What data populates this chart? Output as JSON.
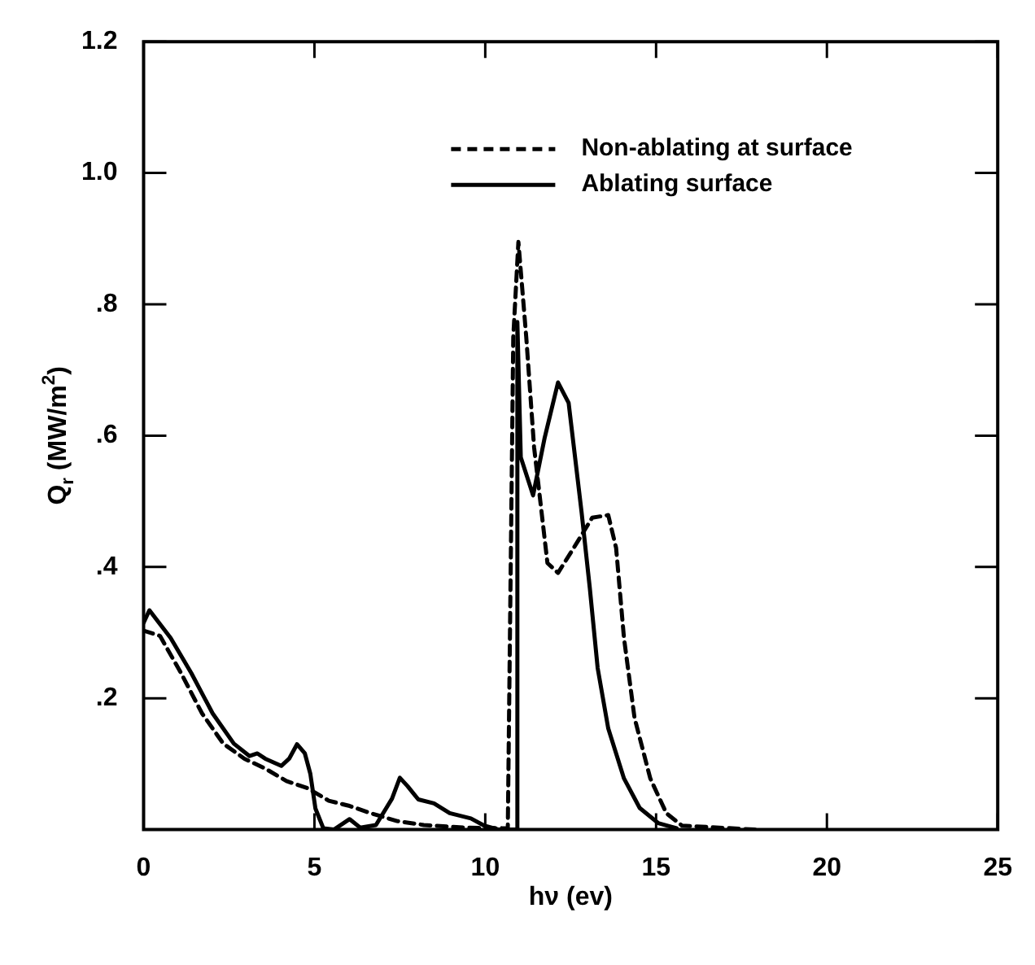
{
  "chart_data": {
    "type": "line",
    "xlabel": "hν (ev)",
    "ylabel": "Q$_{r}$ (MW/m$^{2}$)",
    "xlim": [
      0,
      25
    ],
    "xticks": [
      0,
      5,
      10,
      15,
      20,
      25
    ],
    "ylim": [
      0,
      1.2
    ],
    "yticks": [
      {
        "value": 0,
        "label": null
      },
      {
        "value": 0.2,
        "label": ".2"
      },
      {
        "value": 0.4,
        "label": ".4"
      },
      {
        "value": 0.6,
        "label": ".6"
      },
      {
        "value": 0.8,
        "label": ".8"
      },
      {
        "value": 1.0,
        "label": "1.0"
      },
      {
        "value": 1.2,
        "label": "1.2"
      }
    ],
    "grid": false,
    "legend": "top right",
    "marker": "none",
    "series": [
      {
        "name": "Non-ablating at surface",
        "color": "#000000",
        "line_style": "dashed",
        "x": [
          0,
          0.48,
          1.1,
          1.71,
          2.33,
          2.95,
          3.56,
          4.18,
          4.8,
          5.42,
          6.03,
          6.65,
          7.42,
          8.2,
          9.4,
          10.66,
          10.82,
          10.97,
          11.2,
          11.43,
          11.82,
          12.13,
          12.59,
          13.13,
          13.6,
          13.83,
          14.06,
          14.37,
          14.83,
          15.3,
          15.76,
          17.9
        ],
        "values": [
          0.303,
          0.295,
          0.238,
          0.177,
          0.131,
          0.108,
          0.093,
          0.074,
          0.063,
          0.044,
          0.036,
          0.025,
          0.013,
          0.007,
          0.003,
          0.002,
          0.75,
          0.895,
          0.75,
          0.582,
          0.406,
          0.391,
          0.429,
          0.475,
          0.479,
          0.429,
          0.292,
          0.17,
          0.078,
          0.025,
          0.006,
          0
        ]
      },
      {
        "name": "Ablating surface",
        "color": "#000000",
        "line_style": "solid",
        "x": [
          0,
          0.17,
          0.79,
          1.4,
          2.02,
          2.64,
          3.1,
          3.33,
          3.56,
          4.03,
          4.26,
          4.49,
          4.72,
          4.88,
          5.03,
          5.26,
          5.57,
          6.03,
          6.34,
          6.8,
          7.27,
          7.5,
          7.73,
          8.04,
          8.5,
          8.96,
          9.58,
          9.97,
          10.4,
          10.9,
          10.94,
          11.04,
          11.4,
          11.74,
          12.13,
          12.44,
          12.82,
          13.06,
          13.29,
          13.6,
          14.06,
          14.52,
          15.06,
          15.6
        ],
        "values": [
          0.315,
          0.334,
          0.292,
          0.238,
          0.177,
          0.131,
          0.112,
          0.116,
          0.108,
          0.097,
          0.108,
          0.13,
          0.116,
          0.085,
          0.032,
          0.002,
          0,
          0.016,
          0.003,
          0.007,
          0.047,
          0.079,
          0.066,
          0.046,
          0.04,
          0.025,
          0.017,
          0.006,
          0,
          0,
          0.773,
          0.567,
          0.509,
          0.597,
          0.681,
          0.65,
          0.483,
          0.368,
          0.246,
          0.154,
          0.078,
          0.033,
          0.01,
          0.002
        ]
      }
    ]
  }
}
